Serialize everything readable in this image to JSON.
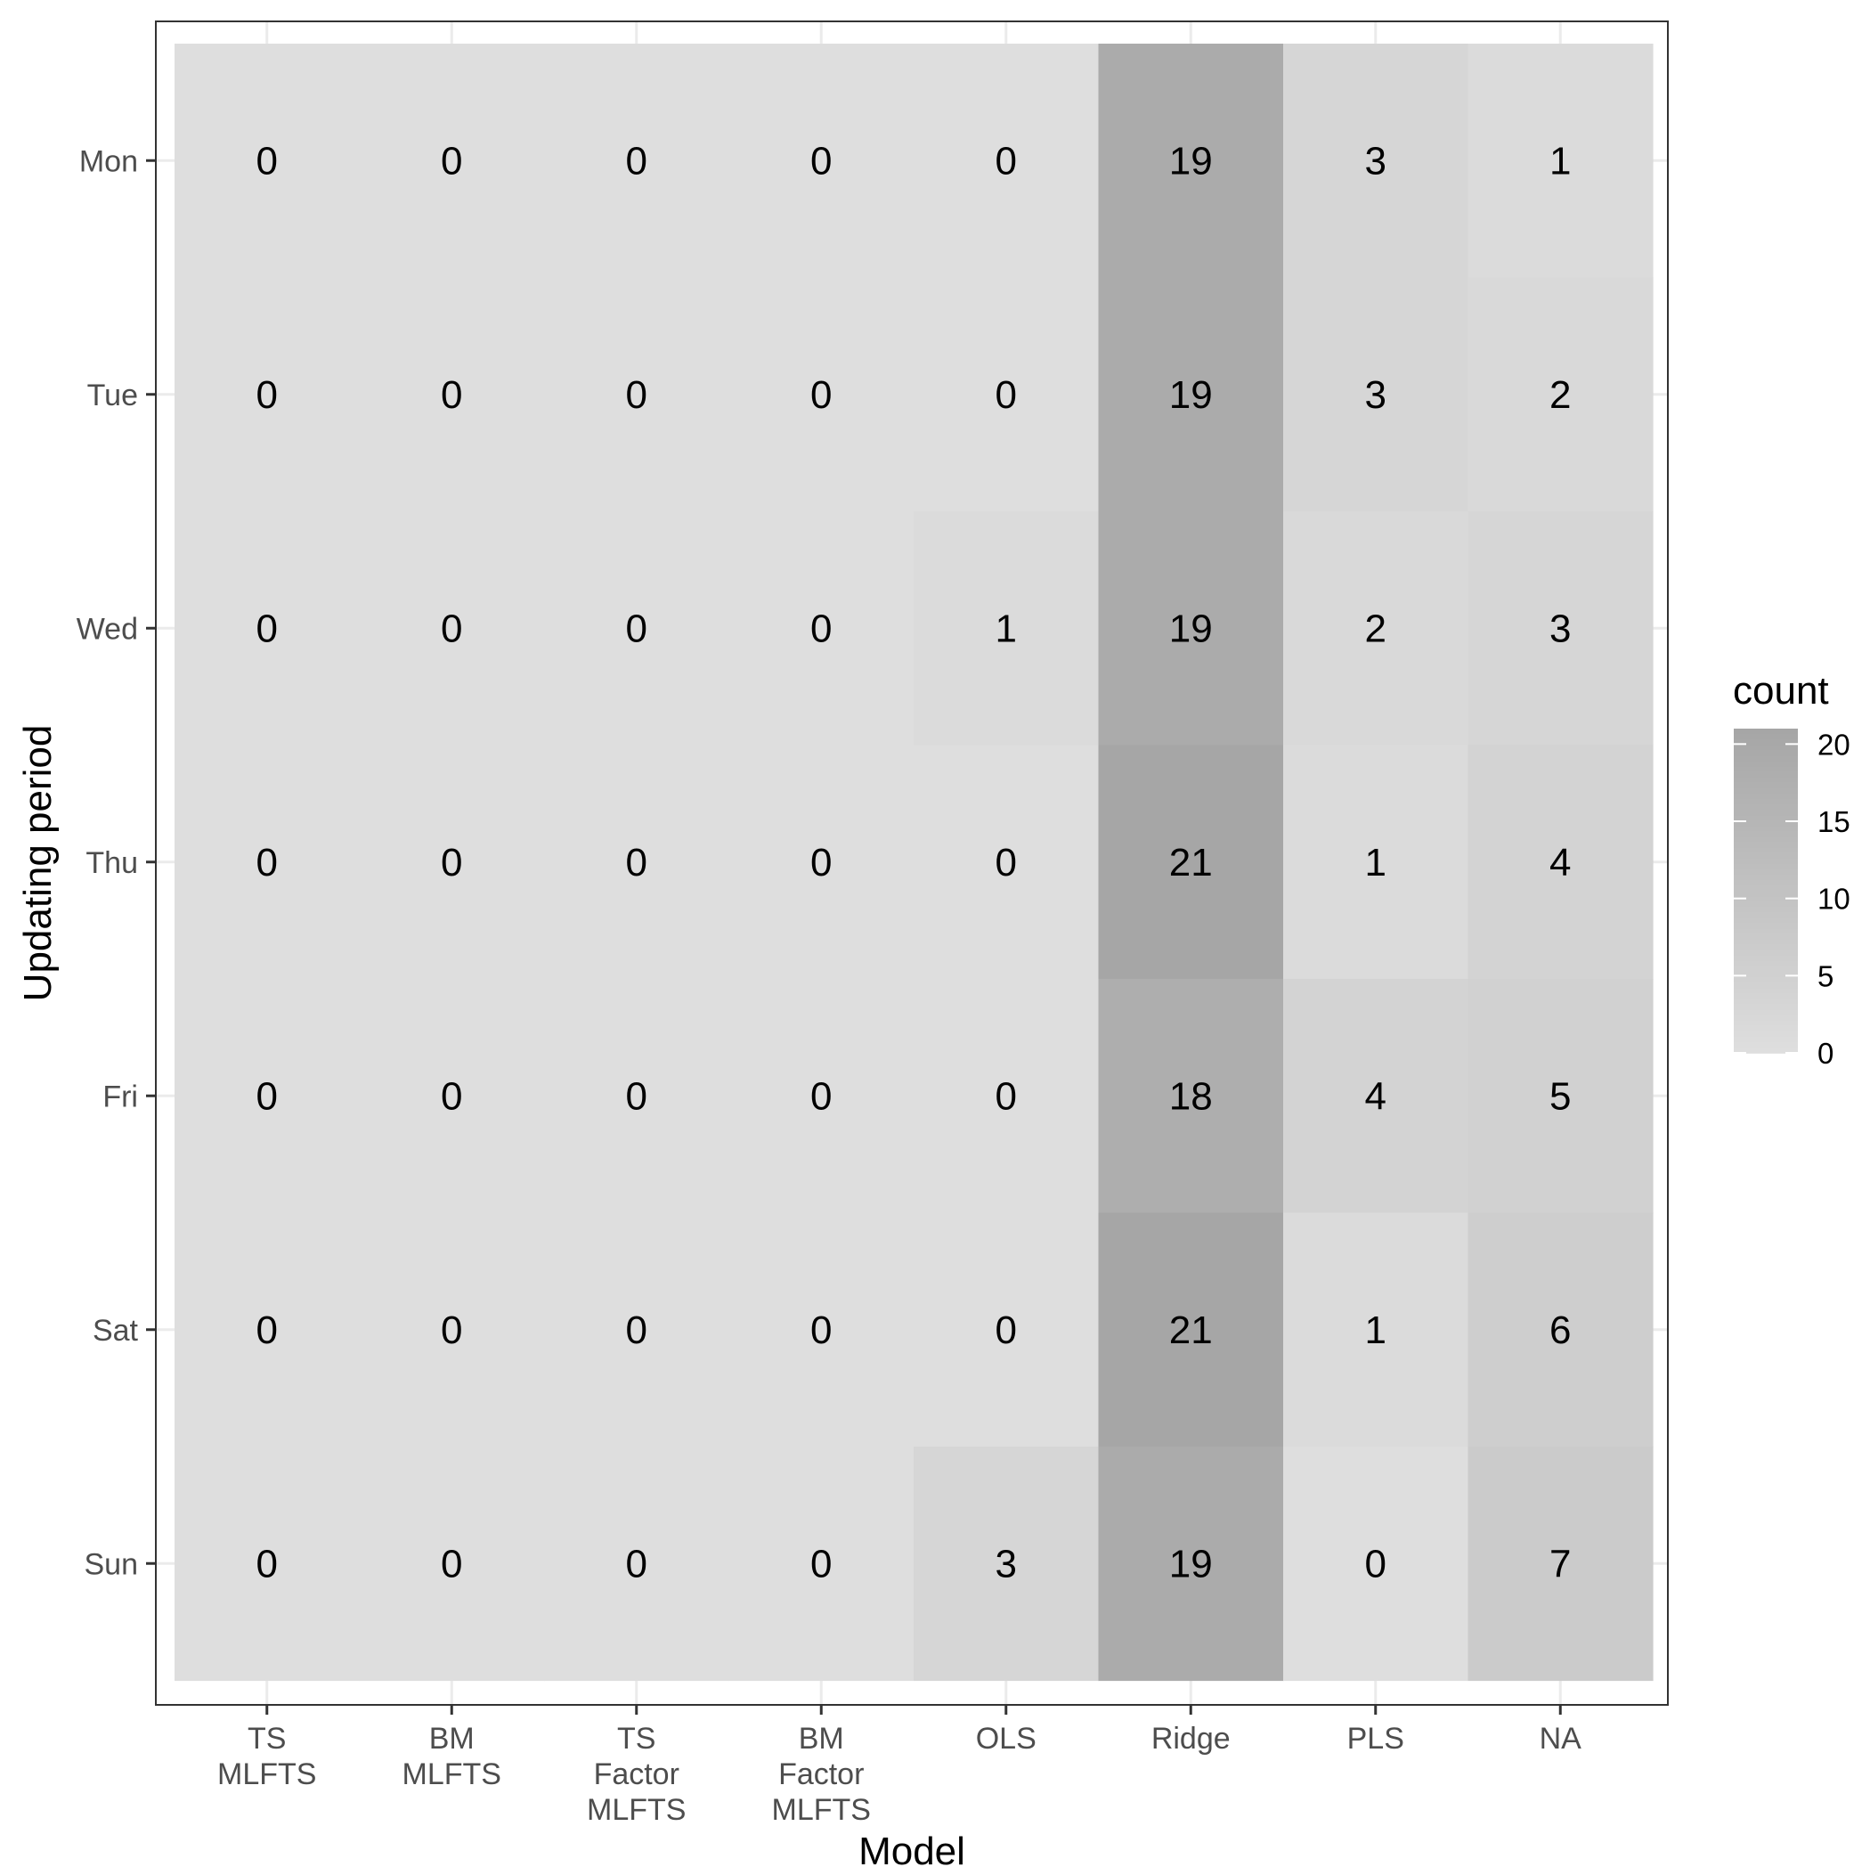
{
  "chart_data": {
    "type": "heatmap",
    "title": "",
    "xlabel": "Model",
    "ylabel": "Updating period",
    "x_categories": [
      [
        "TS",
        "MLFTS"
      ],
      [
        "BM",
        "MLFTS"
      ],
      [
        "TS",
        "Factor",
        "MLFTS"
      ],
      [
        "BM",
        "Factor",
        "MLFTS"
      ],
      [
        "OLS"
      ],
      [
        "Ridge"
      ],
      [
        "PLS"
      ],
      [
        "NA"
      ]
    ],
    "y_categories": [
      "Mon",
      "Tue",
      "Wed",
      "Thu",
      "Fri",
      "Sat",
      "Sun"
    ],
    "values": [
      [
        0,
        0,
        0,
        0,
        0,
        19,
        3,
        1
      ],
      [
        0,
        0,
        0,
        0,
        0,
        19,
        3,
        2
      ],
      [
        0,
        0,
        0,
        0,
        1,
        19,
        2,
        3
      ],
      [
        0,
        0,
        0,
        0,
        0,
        21,
        1,
        4
      ],
      [
        0,
        0,
        0,
        0,
        0,
        18,
        4,
        5
      ],
      [
        0,
        0,
        0,
        0,
        0,
        21,
        1,
        6
      ],
      [
        0,
        0,
        0,
        0,
        3,
        19,
        0,
        7
      ]
    ],
    "legend": {
      "title": "count",
      "ticks": [
        0,
        5,
        10,
        15,
        20
      ],
      "range": [
        0,
        21
      ],
      "color_low": "#dedede",
      "color_high": "#a6a6a6",
      "placement": "right"
    },
    "grid": true,
    "theme": "black-and-white"
  }
}
